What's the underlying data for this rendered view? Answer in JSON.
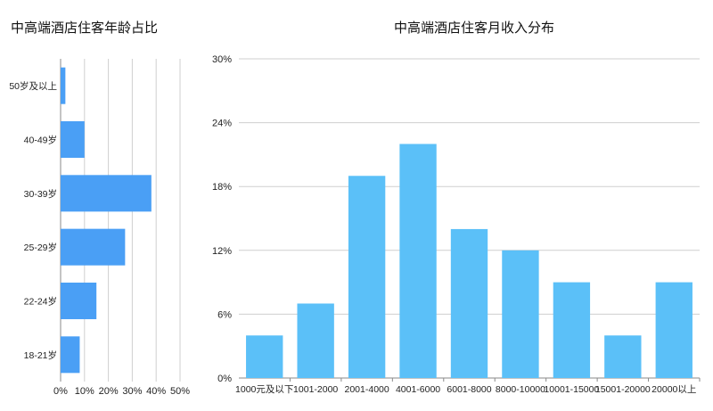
{
  "chart_data": [
    {
      "type": "bar",
      "orientation": "horizontal",
      "title": "中高端酒店住客年龄占比",
      "categories": [
        "50岁及以上",
        "40-49岁",
        "30-39岁",
        "25-29岁",
        "22-24岁",
        "18-21岁"
      ],
      "values": [
        2,
        10,
        38,
        27,
        15,
        8
      ],
      "xlim": [
        0,
        50
      ],
      "x_ticks": [
        "0%",
        "10%",
        "20%",
        "30%",
        "40%",
        "50%"
      ],
      "grid": true,
      "color": "#4a9ff5"
    },
    {
      "type": "bar",
      "orientation": "vertical",
      "title": "中高端酒店住客月收入分布",
      "categories": [
        "1000元及以下",
        "1001-2000",
        "2001-4000",
        "4001-6000",
        "6001-8000",
        "8000-10000",
        "10001-15000",
        "15001-20000",
        "20000以上"
      ],
      "values": [
        4,
        7,
        19,
        22,
        14,
        12,
        9,
        4,
        9
      ],
      "ylim": [
        0,
        30
      ],
      "y_ticks": [
        "0%",
        "6%",
        "12%",
        "18%",
        "24%",
        "30%"
      ],
      "grid": true,
      "color": "#5bc0f8"
    }
  ]
}
